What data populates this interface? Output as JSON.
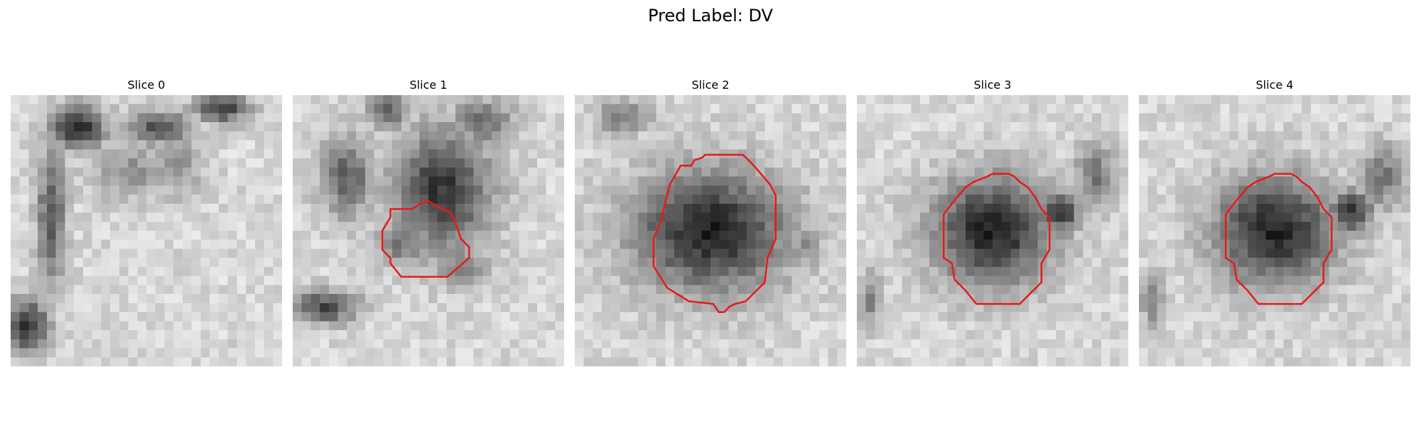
{
  "figure": {
    "title": "Pred Label: DV",
    "contour_color": "#e8191b",
    "panels": [
      {
        "title": "Slice 0",
        "image": "grayscale-ct-slice",
        "dark_blobs": [
          [
            0.25,
            0.12,
            0.1,
            0.08,
            0.9
          ],
          [
            0.55,
            0.12,
            0.12,
            0.06,
            0.7
          ],
          [
            0.78,
            0.05,
            0.1,
            0.05,
            0.8
          ],
          [
            0.15,
            0.45,
            0.05,
            0.25,
            0.7
          ],
          [
            0.06,
            0.85,
            0.08,
            0.1,
            0.85
          ],
          [
            0.45,
            0.28,
            0.15,
            0.1,
            0.35
          ],
          [
            0.62,
            0.25,
            0.08,
            0.12,
            0.4
          ]
        ],
        "contour": []
      },
      {
        "title": "Slice 1",
        "image": "grayscale-ct-slice",
        "dark_blobs": [
          [
            0.55,
            0.35,
            0.18,
            0.22,
            0.85
          ],
          [
            0.2,
            0.3,
            0.1,
            0.15,
            0.6
          ],
          [
            0.35,
            0.05,
            0.08,
            0.08,
            0.55
          ],
          [
            0.7,
            0.1,
            0.12,
            0.08,
            0.55
          ],
          [
            0.12,
            0.78,
            0.12,
            0.06,
            0.75
          ],
          [
            0.4,
            0.55,
            0.1,
            0.08,
            0.5
          ],
          [
            0.62,
            0.62,
            0.1,
            0.08,
            0.45
          ]
        ],
        "contour": [
          [
            0.36,
            0.42
          ],
          [
            0.44,
            0.42
          ],
          [
            0.47,
            0.4
          ],
          [
            0.5,
            0.39
          ],
          [
            0.53,
            0.41
          ],
          [
            0.58,
            0.43
          ],
          [
            0.6,
            0.47
          ],
          [
            0.62,
            0.53
          ],
          [
            0.65,
            0.56
          ],
          [
            0.65,
            0.6
          ],
          [
            0.57,
            0.67
          ],
          [
            0.4,
            0.67
          ],
          [
            0.36,
            0.62
          ],
          [
            0.36,
            0.6
          ],
          [
            0.33,
            0.57
          ],
          [
            0.33,
            0.5
          ],
          [
            0.36,
            0.45
          ]
        ]
      },
      {
        "title": "Slice 2",
        "image": "grayscale-ct-slice",
        "dark_blobs": [
          [
            0.5,
            0.5,
            0.28,
            0.22,
            0.95
          ],
          [
            0.28,
            0.48,
            0.08,
            0.12,
            0.6
          ],
          [
            0.18,
            0.08,
            0.1,
            0.06,
            0.5
          ],
          [
            0.85,
            0.55,
            0.06,
            0.08,
            0.4
          ]
        ],
        "contour": [
          [
            0.39,
            0.26
          ],
          [
            0.43,
            0.26
          ],
          [
            0.44,
            0.24
          ],
          [
            0.47,
            0.23
          ],
          [
            0.48,
            0.22
          ],
          [
            0.62,
            0.22
          ],
          [
            0.66,
            0.26
          ],
          [
            0.72,
            0.33
          ],
          [
            0.74,
            0.37
          ],
          [
            0.74,
            0.53
          ],
          [
            0.71,
            0.6
          ],
          [
            0.7,
            0.69
          ],
          [
            0.63,
            0.76
          ],
          [
            0.59,
            0.77
          ],
          [
            0.57,
            0.78
          ],
          [
            0.55,
            0.8
          ],
          [
            0.53,
            0.8
          ],
          [
            0.51,
            0.77
          ],
          [
            0.42,
            0.76
          ],
          [
            0.34,
            0.71
          ],
          [
            0.29,
            0.63
          ],
          [
            0.29,
            0.53
          ],
          [
            0.32,
            0.46
          ],
          [
            0.33,
            0.41
          ],
          [
            0.34,
            0.37
          ],
          [
            0.35,
            0.33
          ]
        ]
      },
      {
        "title": "Slice 3",
        "image": "grayscale-ct-slice",
        "dark_blobs": [
          [
            0.5,
            0.5,
            0.22,
            0.2,
            0.95
          ],
          [
            0.75,
            0.43,
            0.08,
            0.08,
            0.85
          ],
          [
            0.88,
            0.3,
            0.08,
            0.12,
            0.5
          ],
          [
            0.05,
            0.75,
            0.04,
            0.1,
            0.45
          ]
        ],
        "contour": [
          [
            0.35,
            0.4
          ],
          [
            0.4,
            0.34
          ],
          [
            0.43,
            0.32
          ],
          [
            0.48,
            0.3
          ],
          [
            0.5,
            0.29
          ],
          [
            0.56,
            0.29
          ],
          [
            0.58,
            0.3
          ],
          [
            0.6,
            0.32
          ],
          [
            0.63,
            0.34
          ],
          [
            0.66,
            0.38
          ],
          [
            0.68,
            0.42
          ],
          [
            0.71,
            0.45
          ],
          [
            0.71,
            0.57
          ],
          [
            0.68,
            0.62
          ],
          [
            0.68,
            0.69
          ],
          [
            0.6,
            0.77
          ],
          [
            0.44,
            0.77
          ],
          [
            0.4,
            0.72
          ],
          [
            0.36,
            0.68
          ],
          [
            0.35,
            0.62
          ],
          [
            0.32,
            0.6
          ],
          [
            0.32,
            0.44
          ]
        ]
      },
      {
        "title": "Slice 4",
        "image": "grayscale-ct-slice",
        "dark_blobs": [
          [
            0.5,
            0.5,
            0.22,
            0.2,
            0.95
          ],
          [
            0.78,
            0.43,
            0.08,
            0.08,
            0.85
          ],
          [
            0.9,
            0.3,
            0.08,
            0.12,
            0.5
          ],
          [
            0.05,
            0.75,
            0.04,
            0.1,
            0.45
          ]
        ],
        "contour": [
          [
            0.35,
            0.4
          ],
          [
            0.4,
            0.34
          ],
          [
            0.43,
            0.32
          ],
          [
            0.48,
            0.3
          ],
          [
            0.5,
            0.29
          ],
          [
            0.56,
            0.29
          ],
          [
            0.58,
            0.3
          ],
          [
            0.6,
            0.32
          ],
          [
            0.63,
            0.34
          ],
          [
            0.66,
            0.38
          ],
          [
            0.68,
            0.42
          ],
          [
            0.71,
            0.45
          ],
          [
            0.71,
            0.57
          ],
          [
            0.68,
            0.62
          ],
          [
            0.68,
            0.69
          ],
          [
            0.6,
            0.77
          ],
          [
            0.44,
            0.77
          ],
          [
            0.4,
            0.72
          ],
          [
            0.36,
            0.68
          ],
          [
            0.35,
            0.62
          ],
          [
            0.32,
            0.6
          ],
          [
            0.32,
            0.44
          ]
        ]
      }
    ]
  }
}
